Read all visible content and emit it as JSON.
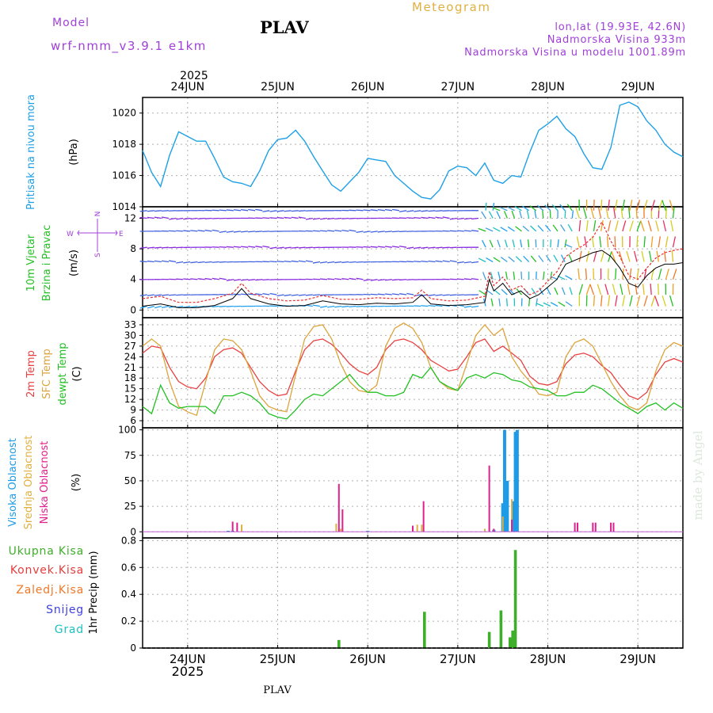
{
  "header": {
    "model_label": "Model",
    "model_name": "wrf-nmm_v3.9.1 e1km",
    "station": "PLAV",
    "title": "Meteogram",
    "lonlat": "lon,lat (19.93E, 42.6N)",
    "elevation": "Nadmorska Visina 933m",
    "model_elevation": "Nadmorska Visina u modelu 1001.89m"
  },
  "footer": {
    "station": "PLAV",
    "credit": "made by Angel"
  },
  "time_axis": {
    "year": "2025",
    "days": [
      "24JUN",
      "25JUN",
      "26JUN",
      "27JUN",
      "28JUN",
      "29JUN"
    ]
  },
  "colors": {
    "pressure": "#1ea0e6",
    "t2m": "#e84040",
    "tsfc": "#dca43c",
    "dewpoint": "#22c022",
    "high_cloud": "#1e9ae6",
    "mid_cloud": "#e0b040",
    "low_cloud": "#e0208c",
    "total_precip": "#3fae2a",
    "conv_precip": "#e63c3c",
    "frz_precip": "#f07828",
    "snow": "#4040e0",
    "graupel": "#20c0c0",
    "wind_speed": "#000000",
    "gust": "#e83030"
  },
  "chart_data": [
    {
      "type": "line",
      "panel": "pressure",
      "ylabel_1": "Pritisak na nivou mora",
      "ylabel_2": "(hPa)",
      "ylim": [
        1014,
        1021
      ],
      "yticks": [
        "1014",
        "1016",
        "1018",
        "1020"
      ],
      "x_unit": "days since 24JUN 00UTC",
      "series": [
        {
          "x": [
            -0.5,
            -0.4,
            -0.3,
            -0.2,
            -0.1,
            0,
            0.1,
            0.2,
            0.3,
            0.4,
            0.5,
            0.6,
            0.7,
            0.8,
            0.9,
            1,
            1.1,
            1.2,
            1.3,
            1.4,
            1.5,
            1.6,
            1.7,
            1.8,
            1.9,
            2,
            2.1,
            2.2,
            2.3,
            2.4,
            2.5,
            2.6,
            2.7,
            2.8,
            2.9,
            3,
            3.1,
            3.2,
            3.3,
            3.4,
            3.5,
            3.6,
            3.7,
            3.8,
            3.9,
            4,
            4.1,
            4.2,
            4.3,
            4.4,
            4.5,
            4.6,
            4.7,
            4.8,
            4.9,
            5,
            5.1,
            5.2,
            5.3,
            5.4,
            5.5
          ],
          "values": [
            1017.6,
            1016.2,
            1015.3,
            1017.3,
            1018.8,
            1018.5,
            1018.2,
            1018.2,
            1017.1,
            1015.9,
            1015.6,
            1015.5,
            1015.3,
            1016.3,
            1017.6,
            1018.3,
            1018.4,
            1018.9,
            1018.2,
            1017.2,
            1016.3,
            1015.4,
            1015.0,
            1015.6,
            1016.2,
            1017.1,
            1017.0,
            1016.9,
            1016.0,
            1015.5,
            1015.0,
            1014.6,
            1014.5,
            1015.1,
            1016.3,
            1016.6,
            1016.5,
            1016.0,
            1016.8,
            1015.7,
            1015.5,
            1016.0,
            1015.9,
            1017.5,
            1018.9,
            1019.3,
            1019.8,
            1019.0,
            1018.5,
            1017.4,
            1016.5,
            1016.4,
            1017.8,
            1020.5,
            1020.7,
            1020.4,
            1019.5,
            1018.9,
            1018.0,
            1017.5,
            1017.2
          ]
        }
      ]
    },
    {
      "type": "line",
      "panel": "wind",
      "ylabel_1": "10m Vjetar",
      "ylabel_2": "Brzina i Pravac",
      "ylabel_3": "(m/s)",
      "compass": {
        "north": "N",
        "west": "W",
        "east": "E",
        "south": "S"
      },
      "ylim": [
        -1,
        13.5
      ],
      "yticks": [
        "0",
        "4",
        "8",
        "12"
      ],
      "series": [
        {
          "name": "wind speed",
          "x": [
            -0.5,
            -0.3,
            -0.1,
            0.1,
            0.3,
            0.5,
            0.6,
            0.7,
            0.9,
            1.1,
            1.3,
            1.5,
            1.7,
            1.9,
            2.1,
            2.3,
            2.5,
            2.6,
            2.7,
            2.9,
            3.1,
            3.3,
            3.35,
            3.4,
            3.5,
            3.6,
            3.7,
            3.8,
            3.9,
            4.0,
            4.1,
            4.2,
            4.3,
            4.4,
            4.5,
            4.6,
            4.7,
            4.8,
            4.9,
            5.0,
            5.1,
            5.2,
            5.3,
            5.4,
            5.5
          ],
          "values": [
            0.5,
            0.8,
            0.3,
            0.3,
            0.6,
            1.5,
            2.8,
            1.5,
            0.8,
            0.5,
            0.6,
            1.2,
            0.8,
            0.7,
            0.9,
            0.8,
            1.0,
            2.0,
            0.8,
            0.6,
            0.7,
            1.0,
            4.0,
            2.5,
            3.5,
            2.0,
            2.5,
            1.5,
            2.0,
            3.0,
            4.0,
            6.0,
            6.5,
            7.0,
            7.5,
            7.8,
            7.0,
            5.5,
            3.5,
            3.0,
            4.5,
            5.5,
            6.0,
            6.0,
            6.2
          ]
        },
        {
          "name": "gust",
          "x": [
            -0.5,
            -0.3,
            -0.1,
            0.1,
            0.3,
            0.5,
            0.6,
            0.7,
            0.9,
            1.1,
            1.3,
            1.5,
            1.7,
            1.9,
            2.1,
            2.3,
            2.5,
            2.6,
            2.7,
            2.9,
            3.1,
            3.3,
            3.35,
            3.4,
            3.5,
            3.6,
            3.7,
            3.8,
            3.9,
            4.0,
            4.1,
            4.2,
            4.3,
            4.4,
            4.5,
            4.6,
            4.7,
            4.8,
            4.9,
            5.0,
            5.1,
            5.2,
            5.3,
            5.4,
            5.5
          ],
          "values": [
            1.5,
            1.8,
            1.0,
            1.0,
            1.5,
            2.2,
            3.5,
            2.2,
            1.5,
            1.2,
            1.3,
            1.9,
            1.4,
            1.4,
            1.6,
            1.5,
            1.6,
            2.6,
            1.5,
            1.2,
            1.3,
            1.8,
            5.0,
            3.2,
            4.3,
            2.6,
            3.2,
            2.0,
            2.5,
            3.8,
            5.0,
            7.0,
            7.8,
            8.5,
            9.5,
            11.5,
            9.0,
            7.0,
            4.5,
            4.0,
            5.5,
            6.8,
            7.5,
            7.8,
            8.0
          ]
        }
      ]
    },
    {
      "type": "line",
      "panel": "temperature",
      "ylabel_1": "2m Temp",
      "ylabel_2": "SFC Temp",
      "ylabel_3": "dewpt Temp",
      "ylabel_4": "(C)",
      "ylim": [
        4,
        35
      ],
      "yticks": [
        "6",
        "9",
        "12",
        "15",
        "18",
        "21",
        "24",
        "27",
        "30",
        "33"
      ],
      "series": [
        {
          "name": "2m Temp",
          "x": [
            -0.5,
            -0.4,
            -0.3,
            -0.2,
            -0.1,
            0,
            0.1,
            0.2,
            0.3,
            0.4,
            0.5,
            0.6,
            0.7,
            0.8,
            0.9,
            1,
            1.1,
            1.2,
            1.3,
            1.4,
            1.5,
            1.6,
            1.7,
            1.8,
            1.9,
            2,
            2.1,
            2.2,
            2.3,
            2.4,
            2.5,
            2.6,
            2.7,
            2.8,
            2.9,
            3,
            3.1,
            3.2,
            3.3,
            3.4,
            3.5,
            3.6,
            3.7,
            3.8,
            3.9,
            4,
            4.1,
            4.2,
            4.3,
            4.4,
            4.5,
            4.6,
            4.7,
            4.8,
            4.9,
            5,
            5.1,
            5.2,
            5.3,
            5.4,
            5.5
          ],
          "values": [
            25,
            27,
            26.5,
            21,
            17,
            15.5,
            15,
            18,
            24,
            26,
            26.5,
            25,
            21,
            17,
            14.5,
            13,
            13.5,
            20,
            26,
            28.5,
            29,
            27.5,
            25,
            22,
            20,
            19,
            21,
            26,
            28.5,
            29,
            28,
            26,
            23,
            21.5,
            20,
            20.5,
            24,
            28,
            29,
            25.5,
            27,
            25,
            23,
            18.5,
            16.5,
            16,
            17,
            22,
            24.5,
            25,
            24,
            21.5,
            19.5,
            16,
            13,
            12,
            14,
            19,
            22.5,
            23.5,
            22.5
          ]
        },
        {
          "name": "SFC Temp",
          "x": [
            -0.5,
            -0.4,
            -0.3,
            -0.2,
            -0.1,
            0,
            0.1,
            0.2,
            0.3,
            0.4,
            0.5,
            0.6,
            0.7,
            0.8,
            0.9,
            1,
            1.1,
            1.2,
            1.3,
            1.4,
            1.5,
            1.6,
            1.7,
            1.8,
            1.9,
            2,
            2.1,
            2.2,
            2.3,
            2.4,
            2.5,
            2.6,
            2.7,
            2.8,
            2.9,
            3,
            3.1,
            3.2,
            3.3,
            3.4,
            3.5,
            3.6,
            3.7,
            3.8,
            3.9,
            4,
            4.1,
            4.2,
            4.3,
            4.4,
            4.5,
            4.6,
            4.7,
            4.8,
            4.9,
            5,
            5.1,
            5.2,
            5.3,
            5.4,
            5.5
          ],
          "values": [
            27,
            29,
            27,
            17,
            10,
            8.5,
            7.5,
            17,
            26,
            29,
            28.5,
            26,
            20,
            13,
            10,
            9,
            8.5,
            19,
            29,
            32.5,
            33,
            29,
            22,
            17,
            14.5,
            14,
            16,
            27,
            32,
            33.5,
            32,
            28,
            21,
            17,
            15,
            14.5,
            22,
            30,
            33,
            30,
            32,
            24,
            20,
            17,
            13.5,
            13,
            14,
            24,
            28,
            29,
            27,
            22,
            17,
            13,
            10,
            9,
            11,
            20,
            26,
            28,
            27
          ]
        },
        {
          "name": "dewpt Temp",
          "x": [
            -0.5,
            -0.4,
            -0.3,
            -0.2,
            -0.1,
            0,
            0.1,
            0.2,
            0.3,
            0.4,
            0.5,
            0.6,
            0.7,
            0.8,
            0.9,
            1,
            1.1,
            1.2,
            1.3,
            1.4,
            1.5,
            1.6,
            1.7,
            1.8,
            1.9,
            2,
            2.1,
            2.2,
            2.3,
            2.4,
            2.5,
            2.6,
            2.7,
            2.8,
            2.9,
            3,
            3.1,
            3.2,
            3.3,
            3.4,
            3.5,
            3.6,
            3.7,
            3.8,
            3.9,
            4,
            4.1,
            4.2,
            4.3,
            4.4,
            4.5,
            4.6,
            4.7,
            4.8,
            4.9,
            5,
            5.1,
            5.2,
            5.3,
            5.4,
            5.5
          ],
          "values": [
            10,
            8,
            16,
            11,
            9.5,
            10,
            10,
            10,
            8,
            13,
            13,
            14,
            13,
            11,
            8,
            7,
            6.5,
            9,
            12,
            13.5,
            13,
            15,
            17,
            19,
            16,
            14,
            14,
            13,
            13,
            14,
            19,
            18,
            21,
            17,
            15.5,
            14.5,
            18,
            19,
            18,
            19.5,
            19,
            17.5,
            17,
            15.5,
            15,
            14.5,
            13,
            13,
            14,
            14,
            16,
            15,
            13,
            11,
            9.5,
            8,
            10,
            11,
            9,
            11,
            9.5
          ]
        }
      ]
    },
    {
      "type": "bar",
      "panel": "cloud",
      "ylabel_1": "Visoka Oblacnost",
      "ylabel_2": "Srednja Oblacnost",
      "ylabel_3": "Niska Oblacnost",
      "ylabel_4": "(%)",
      "ylim": [
        -6,
        102
      ],
      "yticks": [
        "0",
        "25",
        "50",
        "75",
        "100"
      ],
      "series": [
        {
          "name": "Visoka Oblacnost",
          "x": [
            0.45,
            0.5,
            2.0,
            3.4,
            3.5,
            3.52,
            3.55,
            3.62,
            3.64,
            3.66
          ],
          "values": [
            1,
            1,
            1,
            2,
            28,
            100,
            50,
            30,
            98,
            100
          ]
        },
        {
          "name": "Srednja Oblacnost",
          "x": [
            0.6,
            1.65,
            1.7,
            2.55,
            2.6,
            3.3,
            3.5,
            3.6
          ],
          "values": [
            7,
            8,
            3,
            7,
            7,
            3,
            15,
            32
          ]
        },
        {
          "name": "Niska Oblacnost",
          "x": [
            0.5,
            0.55,
            1.68,
            1.72,
            2.5,
            2.62,
            3.35,
            3.4,
            3.6,
            4.3,
            4.33,
            4.5,
            4.53,
            4.7,
            4.73
          ],
          "values": [
            10,
            9,
            47,
            22,
            6,
            30,
            65,
            3,
            12,
            9,
            9,
            9,
            9,
            9,
            9
          ]
        }
      ]
    },
    {
      "type": "bar",
      "panel": "precipitation",
      "ylabel_1": "Ukupna Kisa",
      "ylabel_2": "Konvek.Kisa",
      "ylabel_3": "Zaledj.Kisa",
      "ylabel_4": "Snijeg",
      "ylabel_5": "Grad",
      "ylabel_6": "1hr Precip (mm)",
      "ylim": [
        0,
        0.82
      ],
      "yticks": [
        "0",
        "0.2",
        "0.4",
        "0.6",
        "0.8"
      ],
      "series": [
        {
          "name": "Ukupna Kisa",
          "x": [
            1.68,
            2.63,
            3.35,
            3.48,
            3.58,
            3.61,
            3.64
          ],
          "values": [
            0.06,
            0.27,
            0.12,
            0.28,
            0.08,
            0.13,
            0.73
          ]
        }
      ]
    }
  ]
}
